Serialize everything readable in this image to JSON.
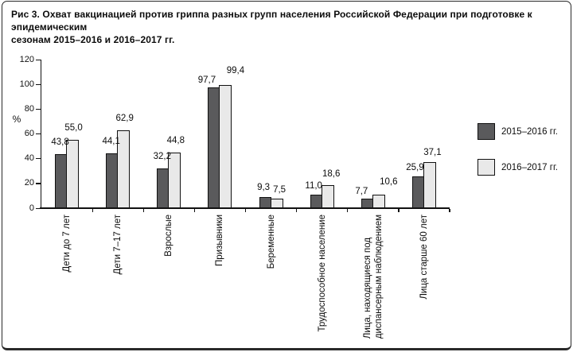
{
  "caption": {
    "line1": "Рис 3. Охват вакцинацией против гриппа  разных групп населения Российской Федерации  при подготовке к эпидемическим",
    "line2": "сезонам 2015–2016 и 2016–2017 гг."
  },
  "chart_data": {
    "type": "bar",
    "title": "Рис 3. Охват вакцинацией против гриппа разных групп населения Российской Федерации при подготовке к эпидемическим сезонам 2015–2016 и 2016–2017 гг.",
    "categories": [
      [
        "Дети до 7 лет"
      ],
      [
        "Дети 7–17 лет"
      ],
      [
        "Взрослые"
      ],
      [
        "Призывники"
      ],
      [
        "Беременные"
      ],
      [
        "Трудоспособное население"
      ],
      [
        "Лица, находящиеся под",
        "диспансерным наблюдением"
      ],
      [
        "Лица старше 60 лет"
      ]
    ],
    "series": [
      {
        "name": "2015–2016 гг.",
        "color": "#5a5a5c",
        "values": [
          43.8,
          44.1,
          32.2,
          97.7,
          9.3,
          11.0,
          7.7,
          25.9
        ]
      },
      {
        "name": "2016–2017 гг.",
        "color": "#e9e9e9",
        "values": [
          55.0,
          62.9,
          44.8,
          99.4,
          7.5,
          18.6,
          10.6,
          37.1
        ]
      }
    ],
    "ylabel": "%",
    "xlabel": "",
    "ylim": [
      0,
      120
    ],
    "yticks": [
      0,
      20,
      40,
      60,
      80,
      100,
      120
    ],
    "grid": false,
    "legend_position": "right",
    "value_labels": true,
    "decimal_separator": ",",
    "axis_color": "#111111",
    "bar_border_color": "#111111",
    "label_offsets": [
      [
        -1,
        9,
        1,
        9
      ],
      [
        -1,
        9,
        1,
        9
      ],
      [
        -1,
        9,
        1,
        9
      ],
      [
        -9,
        3,
        12,
        12
      ],
      [
        -2,
        6,
        3,
        5
      ],
      [
        -3,
        5,
        4,
        8
      ],
      [
        -7,
        3,
        12,
        10
      ],
      [
        -4,
        5,
        3,
        6
      ]
    ]
  }
}
